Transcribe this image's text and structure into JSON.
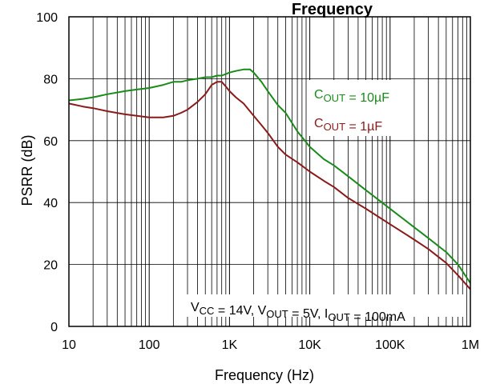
{
  "chart_data": {
    "type": "line",
    "title": "Frequency",
    "xlabel": "Frequency (Hz)",
    "ylabel": "PSRR (dB)",
    "x_scale": "log",
    "xlim": [
      10,
      1000000
    ],
    "ylim": [
      0,
      100
    ],
    "x_ticks": [
      {
        "value": 10,
        "label": "10"
      },
      {
        "value": 100,
        "label": "100"
      },
      {
        "value": 1000,
        "label": "1K"
      },
      {
        "value": 10000,
        "label": "10K"
      },
      {
        "value": 100000,
        "label": "100K"
      },
      {
        "value": 1000000,
        "label": "1M"
      }
    ],
    "y_ticks": [
      {
        "value": 0,
        "label": "0"
      },
      {
        "value": 20,
        "label": "20"
      },
      {
        "value": 40,
        "label": "40"
      },
      {
        "value": 60,
        "label": "60"
      },
      {
        "value": 80,
        "label": "80"
      },
      {
        "value": 100,
        "label": "100"
      }
    ],
    "grid": true,
    "legend_position": "right",
    "annotation": {
      "parts": [
        {
          "t": "V"
        },
        {
          "t": "CC",
          "sub": true
        },
        {
          "t": " = 14V, V"
        },
        {
          "t": "OUT",
          "sub": true
        },
        {
          "t": " = 5V, I"
        },
        {
          "t": "OUT",
          "sub": true
        },
        {
          "t": " = 100mA"
        }
      ]
    },
    "series": [
      {
        "name": "COUT = 10µF",
        "label_parts": [
          {
            "t": "C"
          },
          {
            "t": "OUT",
            "sub": true
          },
          {
            "t": " = 10µF"
          }
        ],
        "color": "#1a8a1a",
        "x": [
          10,
          15,
          20,
          30,
          50,
          70,
          100,
          150,
          200,
          250,
          300,
          400,
          500,
          600,
          700,
          800,
          900,
          1000,
          1200,
          1500,
          1800,
          2000,
          2500,
          3000,
          4000,
          5000,
          7000,
          10000,
          15000,
          20000,
          30000,
          50000,
          100000,
          200000,
          300000,
          500000,
          700000,
          1000000
        ],
        "y": [
          73,
          73.5,
          74,
          75,
          76,
          76.5,
          77,
          78,
          79,
          79,
          79.5,
          80,
          80.5,
          80.5,
          81,
          81,
          81.5,
          82,
          82.5,
          83,
          83,
          82,
          79,
          76,
          71.5,
          69,
          63,
          58,
          54,
          52,
          48.5,
          44,
          38,
          32,
          28.5,
          24,
          20,
          14
        ]
      },
      {
        "name": "COUT = 1µF",
        "label_parts": [
          {
            "t": "C"
          },
          {
            "t": "OUT",
            "sub": true
          },
          {
            "t": " = 1µF"
          }
        ],
        "color": "#8b1a1a",
        "x": [
          10,
          15,
          20,
          30,
          50,
          70,
          100,
          150,
          200,
          250,
          300,
          400,
          500,
          600,
          700,
          800,
          900,
          1000,
          1200,
          1500,
          2000,
          2500,
          3000,
          4000,
          5000,
          7000,
          10000,
          15000,
          20000,
          30000,
          50000,
          100000,
          200000,
          300000,
          500000,
          700000,
          1000000
        ],
        "y": [
          72,
          71,
          70.5,
          69.5,
          68.5,
          68,
          67.5,
          67.5,
          68,
          69,
          70,
          72.5,
          75,
          78,
          79,
          79,
          77.5,
          76,
          74,
          72,
          68,
          65,
          62.5,
          58,
          55.5,
          53,
          50,
          47,
          45,
          41.5,
          38,
          33,
          28,
          25,
          20.5,
          16.5,
          12
        ]
      }
    ]
  }
}
